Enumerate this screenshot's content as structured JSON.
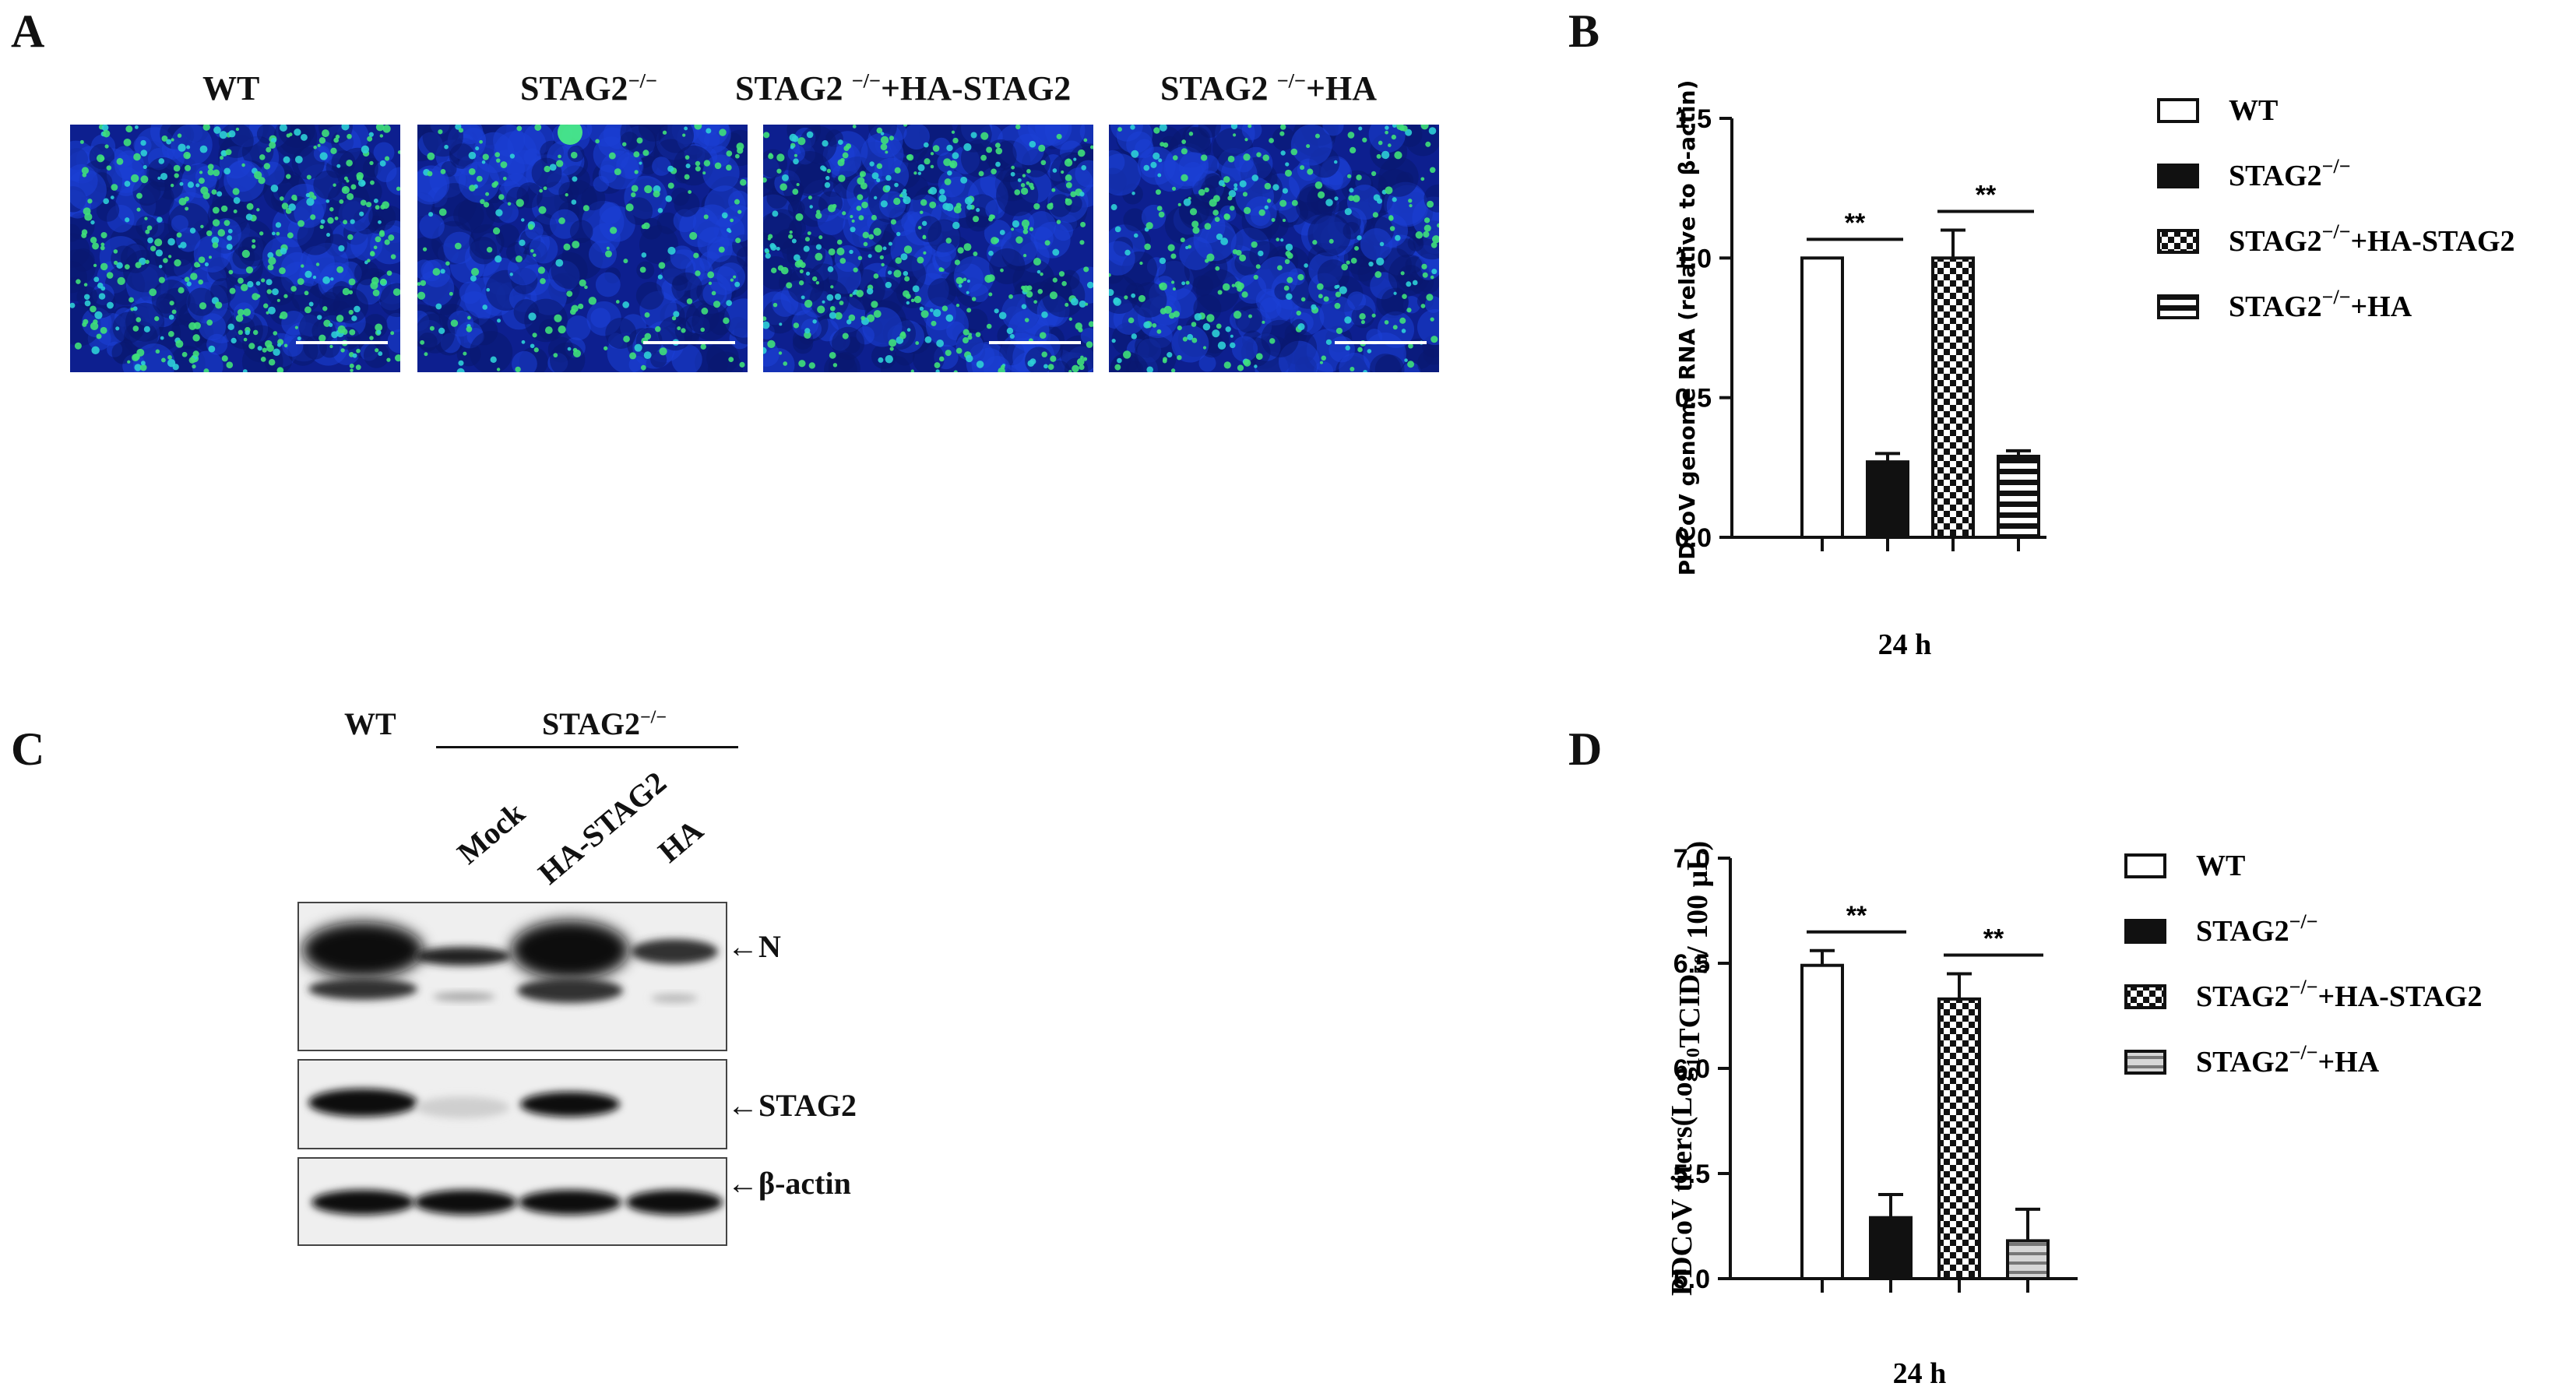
{
  "panels": {
    "a": "A",
    "b": "B",
    "c": "C",
    "d": "D"
  },
  "panel_a": {
    "labels": [
      {
        "main": "WT",
        "sup": "",
        "rest": ""
      },
      {
        "main": "STAG2",
        "sup": "−/−",
        "rest": ""
      },
      {
        "main": "STAG2 ",
        "sup": "−/−",
        "rest": "+HA-STAG2"
      },
      {
        "main": "STAG2 ",
        "sup": "−/−",
        "rest": "+HA"
      }
    ]
  },
  "panel_c": {
    "group_wt": "WT",
    "group_ko": {
      "main": "STAG2",
      "sup": "−/−"
    },
    "lanes": [
      "Mock",
      "HA-STAG2",
      "HA"
    ],
    "bands": [
      "N",
      "STAG2",
      "β-actin"
    ],
    "colors": {
      "band": "#1a1a1a"
    }
  },
  "chart_data": [
    {
      "type": "bar",
      "panel": "B",
      "ylabel": "PDCoV genome RNA (relative to β-actin)",
      "xlabel": "24 h",
      "ylim": [
        0,
        1.5
      ],
      "yticks": [
        "0.0",
        "0.5",
        "1.0",
        "1.5"
      ],
      "ytick_values": [
        0.0,
        0.5,
        1.0,
        1.5
      ],
      "series": [
        {
          "name": "WT",
          "value": 1.0,
          "error": 0.0,
          "pattern": "white"
        },
        {
          "name": "STAG2−/−",
          "value": 0.27,
          "error": 0.03,
          "pattern": "black"
        },
        {
          "name": "STAG2−/−+HA-STAG2",
          "value": 1.0,
          "error": 0.1,
          "pattern": "checker"
        },
        {
          "name": "STAG2−/−+HA",
          "value": 0.29,
          "error": 0.02,
          "pattern": "hstripes"
        }
      ],
      "legend": [
        {
          "main": "WT",
          "sup": "",
          "rest": ""
        },
        {
          "main": "STAG2",
          "sup": "−/−",
          "rest": ""
        },
        {
          "main": "STAG2",
          "sup": "−/−",
          "rest": "+HA-STAG2"
        },
        {
          "main": "STAG2",
          "sup": "−/−",
          "rest": "+HA"
        }
      ],
      "significance": [
        {
          "between": [
            0,
            1
          ],
          "label": "**"
        },
        {
          "between": [
            2,
            3
          ],
          "label": "**"
        }
      ]
    },
    {
      "type": "bar",
      "panel": "D",
      "ylabel": "PDCoV titers(Log10TCID50/ 100 μL)",
      "ylabel_parts": {
        "a": "PDCoV titers(Log",
        "sub1": "10",
        "b": "TCID",
        "sub2": "50",
        "c": "/ 100 μL)"
      },
      "xlabel": "24 h",
      "ylim": [
        5.0,
        7.0
      ],
      "yticks": [
        "5.0",
        "5.5",
        "6.0",
        "6.5",
        "7.0"
      ],
      "ytick_values": [
        5.0,
        5.5,
        6.0,
        6.5,
        7.0
      ],
      "series": [
        {
          "name": "WT",
          "value": 6.49,
          "error": 0.07,
          "pattern": "white"
        },
        {
          "name": "STAG2−/−",
          "value": 5.29,
          "error": 0.11,
          "pattern": "black"
        },
        {
          "name": "STAG2−/−+HA-STAG2",
          "value": 6.33,
          "error": 0.12,
          "pattern": "checker"
        },
        {
          "name": "STAG2−/−+HA",
          "value": 5.18,
          "error": 0.15,
          "pattern": "grayhstripes"
        }
      ],
      "legend": [
        {
          "main": "WT",
          "sup": "",
          "rest": ""
        },
        {
          "main": "STAG2",
          "sup": "−/−",
          "rest": ""
        },
        {
          "main": "STAG2",
          "sup": "−/−",
          "rest": "+HA-STAG2"
        },
        {
          "main": "STAG2",
          "sup": "−/−",
          "rest": "+HA"
        }
      ],
      "significance": [
        {
          "between": [
            0,
            1
          ],
          "label": "**"
        },
        {
          "between": [
            2,
            3
          ],
          "label": "**"
        }
      ]
    }
  ]
}
